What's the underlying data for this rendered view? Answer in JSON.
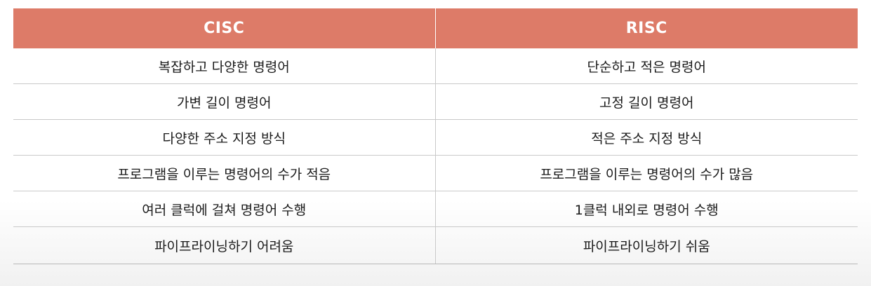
{
  "table": {
    "headers": [
      "CISC",
      "RISC"
    ],
    "rows": [
      [
        "복잡하고 다양한 명령어",
        "단순하고 적은 명령어"
      ],
      [
        "가변 길이 명령어",
        "고정 길이 명령어"
      ],
      [
        "다양한 주소 지정 방식",
        "적은 주소 지정 방식"
      ],
      [
        "프로그램을 이루는 명령어의 수가 적음",
        "프로그램을 이루는 명령어의 수가 많음"
      ],
      [
        "여러 클럭에 걸쳐 명령어 수행",
        "1클럭 내외로 명령어 수행"
      ],
      [
        "파이프라이닝하기 어려움",
        "파이프라이닝하기 쉬움"
      ]
    ]
  },
  "colors": {
    "header_bg": "#dd7b68",
    "header_text": "#ffffff",
    "grid_line": "#c9c9c9"
  }
}
